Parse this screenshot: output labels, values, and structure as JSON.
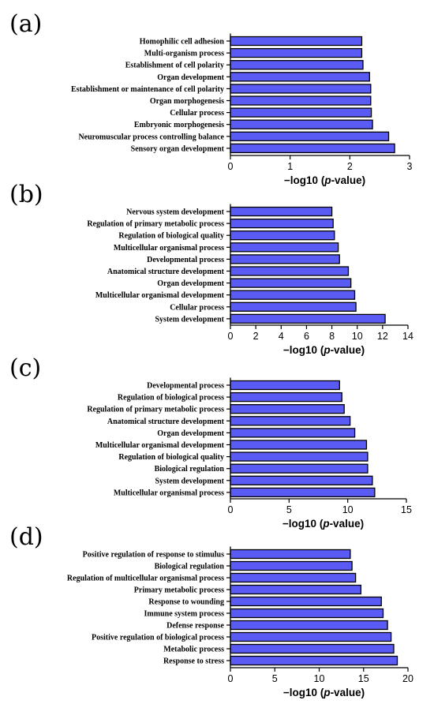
{
  "chart_data": [
    {
      "type": "bar",
      "orientation": "horizontal",
      "panel_label": "(a)",
      "xlabel": "−log10 (p-value)",
      "xlim": [
        0,
        3
      ],
      "xticks": [
        "0",
        "1",
        "2",
        "3"
      ],
      "bar_color": "#5a5af5",
      "categories": [
        "Homophilic cell adhesion",
        "Multi-organism process",
        "Establishment of cell polarity",
        "Organ development",
        "Establishment or maintenance of cell polarity",
        "Organ morphogenesis",
        "Cellular process",
        "Embryonic morphogenesis",
        "Neuromuscular process controlling balance",
        "Sensory organ development"
      ],
      "values": [
        2.2,
        2.2,
        2.22,
        2.33,
        2.35,
        2.35,
        2.36,
        2.38,
        2.65,
        2.75
      ]
    },
    {
      "type": "bar",
      "orientation": "horizontal",
      "panel_label": "(b)",
      "xlabel": "−log10 (p-value)",
      "xlim": [
        0,
        14
      ],
      "xticks": [
        "0",
        "2",
        "4",
        "6",
        "8",
        "10",
        "12",
        "14"
      ],
      "bar_color": "#5a5af5",
      "categories": [
        "Nervous system development",
        "Regulation of primary metabolic process",
        "Regulation of biological quality",
        "Multicellular organismal process",
        "Developmental process",
        "Anatomical structure development",
        "Organ development",
        "Multicellular organismal development",
        "Cellular process",
        "System development"
      ],
      "values": [
        8.0,
        8.1,
        8.2,
        8.5,
        8.6,
        9.3,
        9.5,
        9.8,
        9.9,
        12.2
      ]
    },
    {
      "type": "bar",
      "orientation": "horizontal",
      "panel_label": "(c)",
      "xlabel": "−log10 (p-value)",
      "xlim": [
        0,
        15
      ],
      "xticks": [
        "0",
        "5",
        "10",
        "15"
      ],
      "bar_color": "#5a5af5",
      "categories": [
        "Developmental process",
        "Regulation of biological process",
        "Regulation of primary metabolic process",
        "Anatomical structure development",
        "Organ development",
        "Multicellular organismal development",
        "Regulation of biological quality",
        "Biological regulation",
        "System development",
        "Multicellular organismal process"
      ],
      "values": [
        9.3,
        9.5,
        9.7,
        10.2,
        10.6,
        11.6,
        11.7,
        11.7,
        12.1,
        12.3
      ]
    },
    {
      "type": "bar",
      "orientation": "horizontal",
      "panel_label": "(d)",
      "xlabel": "−log10 (p-value)",
      "xlim": [
        0,
        20
      ],
      "xticks": [
        "0",
        "5",
        "10",
        "15",
        "20"
      ],
      "bar_color": "#5a5af5",
      "categories": [
        "Positive regulation of response to stimulus",
        "Biological regulation",
        "Regulation of multicellular organismal process",
        "Primary metabolic process",
        "Response to wounding",
        "Immune system process",
        "Defense response",
        "Positive regulation of biological process",
        "Metabolic process",
        "Response to stress"
      ],
      "values": [
        13.5,
        13.7,
        14.1,
        14.7,
        17.0,
        17.2,
        17.7,
        18.1,
        18.4,
        18.8
      ]
    }
  ]
}
